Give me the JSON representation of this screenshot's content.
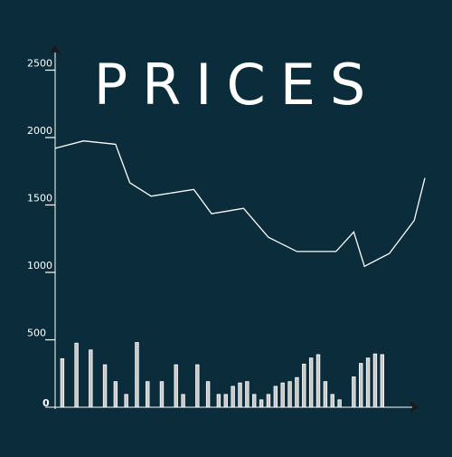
{
  "colors": {
    "background": "#0b2d3b",
    "foreground": "#ffffff",
    "axis": "#1a1a1a",
    "bar_fill": "#c8c8c8"
  },
  "chart_data": {
    "type": "line+bar",
    "title": "PRICES",
    "xlabel": "",
    "ylabel": "",
    "ylim": [
      0,
      2500
    ],
    "y_ticks": [
      0,
      500,
      1000,
      1500,
      2000,
      2500
    ],
    "y_tick_labels": [
      "0",
      "500",
      "1000",
      "1500",
      "2000",
      "2500"
    ],
    "grid": false,
    "series": [
      {
        "type": "line",
        "x": [
          0,
          4,
          8.5,
          10.5,
          13.5,
          19.5,
          22,
          26.5,
          30,
          34,
          39.5,
          42,
          43.5,
          47,
          50.5,
          52
        ],
        "values": [
          1920,
          1975,
          1950,
          1665,
          1565,
          1615,
          1435,
          1475,
          1260,
          1155,
          1155,
          1300,
          1045,
          1140,
          1385,
          1700
        ]
      },
      {
        "type": "bar",
        "x": [
          1,
          3,
          5,
          7,
          8.5,
          10,
          11.5,
          13,
          15,
          17,
          18,
          20,
          21.5,
          23,
          24,
          25,
          26,
          27,
          28,
          29,
          30,
          31,
          32,
          33,
          34,
          35,
          36,
          37,
          38,
          39,
          40,
          42,
          43,
          44,
          45,
          46,
          47,
          48
        ],
        "values": [
          360,
          475,
          425,
          315,
          190,
          95,
          480,
          190,
          190,
          315,
          95,
          315,
          190,
          95,
          95,
          155,
          180,
          190,
          95,
          55,
          95,
          155,
          180,
          190,
          220,
          320,
          365,
          390,
          190,
          95,
          55,
          225,
          325,
          365,
          395,
          390,
          0,
          0
        ]
      }
    ]
  }
}
